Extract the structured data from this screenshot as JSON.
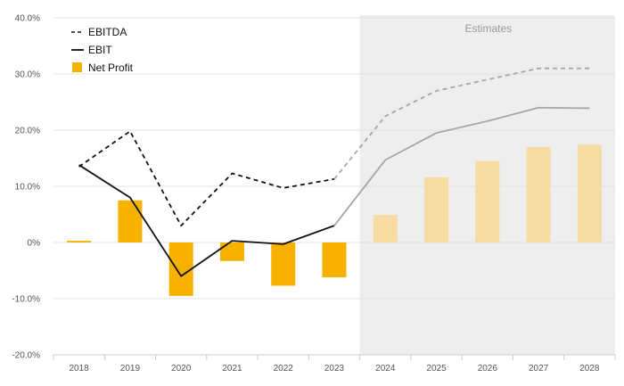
{
  "chart_data": {
    "type": "bar",
    "categories": [
      "2018",
      "2019",
      "2020",
      "2021",
      "2022",
      "2023",
      "2024",
      "2025",
      "2026",
      "2027",
      "2028"
    ],
    "estimate_start_index": 6,
    "estimates_label": "Estimates",
    "yticks": [
      "40.0%",
      "30.0%",
      "20.0%",
      "10.0%",
      "0%",
      "-10.0%",
      "-20.0%"
    ],
    "ylim": [
      -20,
      40
    ],
    "grid": true,
    "legend_position": "top-left",
    "series": [
      {
        "name": "EBITDA",
        "kind": "line",
        "style": "dashed",
        "values": [
          13.5,
          19.8,
          3.0,
          12.3,
          9.7,
          11.3,
          22.5,
          27.0,
          29.0,
          31.0,
          31.0
        ]
      },
      {
        "name": "EBIT",
        "kind": "line",
        "style": "solid",
        "values": [
          13.8,
          8.0,
          -6.0,
          0.3,
          -0.3,
          3.0,
          14.7,
          19.5,
          21.6,
          24.0,
          23.9
        ]
      },
      {
        "name": "Net Profit",
        "kind": "bar",
        "values": [
          0.3,
          7.5,
          -9.5,
          -3.3,
          -7.7,
          -6.2,
          4.9,
          11.6,
          14.5,
          17.0,
          17.4
        ]
      }
    ],
    "colors": {
      "bar_actual": "#f7b200",
      "bar_estimate": "#f6dba3",
      "line_actual": "#111111",
      "line_estimate": "#a6a6a6",
      "estimate_band": "#eeeeee",
      "grid": "#e3e3e3"
    }
  }
}
